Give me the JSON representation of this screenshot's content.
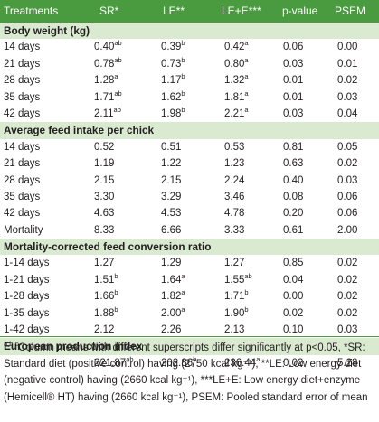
{
  "headers": [
    "Treatments",
    "SR*",
    "LE**",
    "LE+E***",
    "p-value",
    "PSEM"
  ],
  "sections": [
    {
      "title": "Body weight (kg)",
      "rows": [
        {
          "label": "14 days",
          "sr": "0.40",
          "sr_sup": "ab",
          "le": "0.39",
          "le_sup": "b",
          "lee": "0.42",
          "lee_sup": "a",
          "p": "0.06",
          "psem": "0.00"
        },
        {
          "label": "21 days",
          "sr": "0.78",
          "sr_sup": "ab",
          "le": "0.73",
          "le_sup": "b",
          "lee": "0.80",
          "lee_sup": "a",
          "p": "0.03",
          "psem": "0.01"
        },
        {
          "label": "28 days",
          "sr": "1.28",
          "sr_sup": "a",
          "le": "1.17",
          "le_sup": "b",
          "lee": "1.32",
          "lee_sup": "a",
          "p": "0.01",
          "psem": "0.02"
        },
        {
          "label": "35 days",
          "sr": "1.71",
          "sr_sup": "ab",
          "le": "1.62",
          "le_sup": "b",
          "lee": "1.81",
          "lee_sup": "a",
          "p": "0.01",
          "psem": "0.03"
        },
        {
          "label": "42 days",
          "sr": "2.11",
          "sr_sup": "ab",
          "le": "1.98",
          "le_sup": "b",
          "lee": "2.21",
          "lee_sup": "a",
          "p": "0.03",
          "psem": "0.04"
        }
      ]
    },
    {
      "title": "Average feed intake per chick",
      "rows": [
        {
          "label": "14 days",
          "sr": "0.52",
          "sr_sup": "",
          "le": "0.51",
          "le_sup": "",
          "lee": "0.53",
          "lee_sup": "",
          "p": "0.81",
          "psem": "0.05"
        },
        {
          "label": "21 days",
          "sr": "1.19",
          "sr_sup": "",
          "le": "1.22",
          "le_sup": "",
          "lee": "1.23",
          "lee_sup": "",
          "p": "0.63",
          "psem": "0.02"
        },
        {
          "label": "28 days",
          "sr": "2.15",
          "sr_sup": "",
          "le": "2.15",
          "le_sup": "",
          "lee": "2.24",
          "lee_sup": "",
          "p": "0.40",
          "psem": "0.03"
        },
        {
          "label": "35 days",
          "sr": "3.30",
          "sr_sup": "",
          "le": "3.29",
          "le_sup": "",
          "lee": "3.46",
          "lee_sup": "",
          "p": "0.08",
          "psem": "0.06"
        },
        {
          "label": "42 days",
          "sr": "4.63",
          "sr_sup": "",
          "le": "4.53",
          "le_sup": "",
          "lee": "4.78",
          "lee_sup": "",
          "p": "0.20",
          "psem": "0.06"
        },
        {
          "label": "Mortality",
          "sr": "8.33",
          "sr_sup": "",
          "le": "6.66",
          "le_sup": "",
          "lee": "3.33",
          "lee_sup": "",
          "p": "0.61",
          "psem": "2.00"
        }
      ]
    },
    {
      "title": "Mortality-corrected feed conversion ratio",
      "rows": [
        {
          "label": "1-14 days",
          "sr": "1.27",
          "sr_sup": "",
          "le": "1.29",
          "le_sup": "",
          "lee": "1.27",
          "lee_sup": "",
          "p": "0.85",
          "psem": "0.02"
        },
        {
          "label": "1-21 days",
          "sr": "1.51",
          "sr_sup": "b",
          "le": "1.64",
          "le_sup": "a",
          "lee": "1.55",
          "lee_sup": "ab",
          "p": "0.04",
          "psem": "0.02"
        },
        {
          "label": "1-28 days",
          "sr": "1.66",
          "sr_sup": "b",
          "le": "1.82",
          "le_sup": "a",
          "lee": "1.71",
          "lee_sup": "b",
          "p": "0.00",
          "psem": "0.02"
        },
        {
          "label": "1-35 days",
          "sr": "1.88",
          "sr_sup": "b",
          "le": "2.00",
          "le_sup": "a",
          "lee": "1.90",
          "lee_sup": "b",
          "p": "0.02",
          "psem": "0.02"
        },
        {
          "label": "1-42 days",
          "sr": "2.12",
          "sr_sup": "",
          "le": "2.26",
          "le_sup": "",
          "lee": "2.13",
          "lee_sup": "",
          "p": "0.10",
          "psem": "0.03"
        }
      ]
    },
    {
      "title": "European production index",
      "rows": [
        {
          "label": "",
          "sr": "221.87",
          "sr_sup": "ab",
          "le": "202.86",
          "le_sup": "b",
          "lee": "236.44",
          "lee_sup": "a",
          "p": "0.02",
          "psem": "5.28"
        }
      ]
    }
  ],
  "footnote": {
    "sup": "a,b,c",
    "text": "Column means with different superscripts differ significantly at p<0.05, *SR: Standard diet (positive control) having (2750 kcal kg⁻¹), **LE: Low energy diet (negative control) having (2660 kcal kg⁻¹), ***LE+E: Low energy diet+enzyme (Hemicell® HT) having (2660 kcal kg⁻¹), PSEM: Pooled standard error of mean"
  },
  "colors": {
    "header_bg": "#4a9a3f",
    "section_bg": "#d9ead0",
    "text": "#231f20"
  }
}
